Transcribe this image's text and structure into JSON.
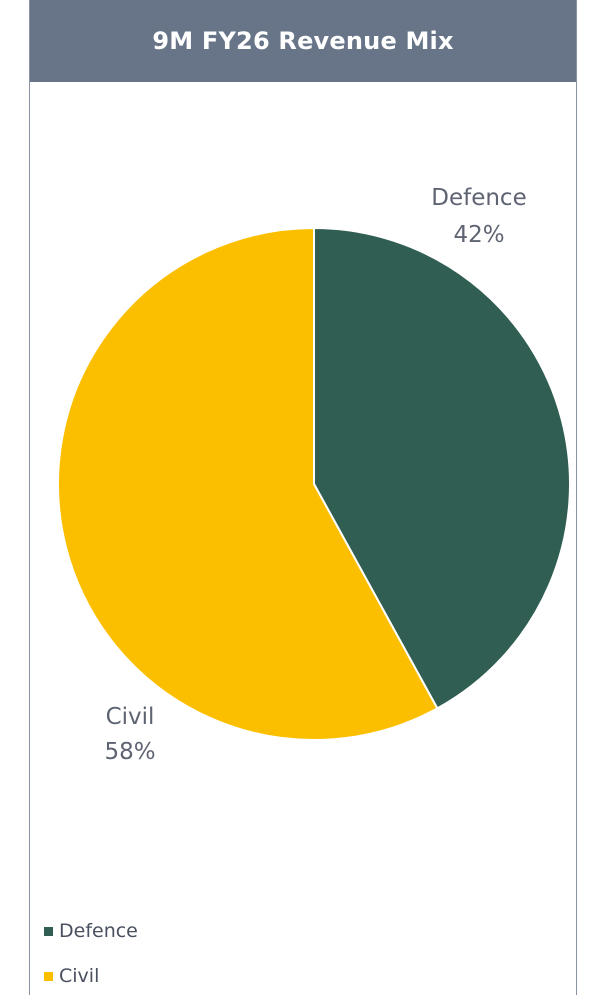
{
  "chart_data": {
    "type": "pie",
    "title": "9M FY26 Revenue Mix",
    "slices": [
      {
        "name": "Defence",
        "value": 42,
        "label": "42%",
        "color": "#315e52"
      },
      {
        "name": "Civil",
        "value": 58,
        "label": "58%",
        "color": "#fbbf00"
      }
    ],
    "legend": {
      "position": "bottom-left",
      "entries": [
        "Defence",
        "Civil"
      ]
    }
  },
  "colors": {
    "title_bar": "#687589",
    "title_text": "#ffffff",
    "border": "#8a93a3",
    "label_text": "#5e6472"
  }
}
